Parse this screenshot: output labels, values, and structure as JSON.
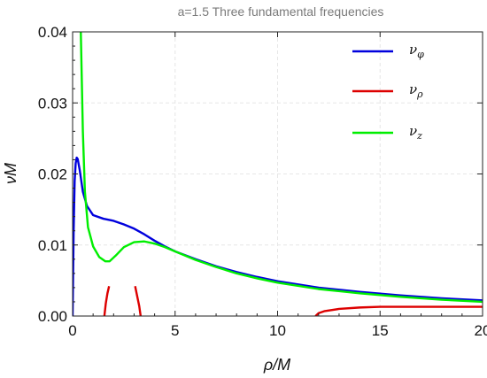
{
  "chart_data": {
    "type": "line",
    "title": "a=1.5  Three fundamental frequencies",
    "xlabel": "ρ/M",
    "ylabel": "νM",
    "xlim": [
      0,
      20
    ],
    "ylim": [
      0,
      0.04
    ],
    "xticks": [
      "0",
      "5",
      "10",
      "15",
      "20"
    ],
    "yticks": [
      "0.00",
      "0.01",
      "0.02",
      "0.03",
      "0.04"
    ],
    "grid": true,
    "legend": "top-right",
    "series": [
      {
        "name": "ν_φ",
        "legend_main": "ν",
        "legend_sub": "φ",
        "color": "#0000dd",
        "x": [
          0.0,
          0.05,
          0.1,
          0.15,
          0.2,
          0.25,
          0.35,
          0.5,
          0.7,
          1.0,
          1.5,
          2.0,
          2.5,
          3.0,
          3.5,
          4.0,
          4.5,
          5.0,
          6.0,
          7.0,
          8.0,
          9.0,
          10.0,
          12.0,
          14.0,
          16.0,
          18.0,
          20.0
        ],
        "y": [
          0.0,
          0.012,
          0.019,
          0.0215,
          0.0223,
          0.0221,
          0.0205,
          0.0175,
          0.0155,
          0.0142,
          0.0137,
          0.0134,
          0.0129,
          0.0123,
          0.0115,
          0.0106,
          0.0098,
          0.0091,
          0.008,
          0.007,
          0.0062,
          0.0055,
          0.0049,
          0.004,
          0.0034,
          0.0029,
          0.0025,
          0.0022
        ]
      },
      {
        "name": "ν_ρ",
        "legend_main": "ν",
        "legend_sub": "ρ",
        "color": "#dd0000",
        "segments": [
          {
            "x": [
              1.55,
              1.62,
              1.7,
              1.78
            ],
            "y": [
              0.0,
              0.0018,
              0.0032,
              0.0042
            ]
          },
          {
            "x": [
              3.05,
              3.15,
              3.25,
              3.32
            ],
            "y": [
              0.0042,
              0.0028,
              0.0014,
              0.0
            ]
          },
          {
            "x": [
              11.85,
              12.0,
              12.3,
              13.0,
              14.0,
              15.0,
              16.0,
              18.0,
              20.0
            ],
            "y": [
              0.0,
              0.0004,
              0.0007,
              0.001,
              0.0012,
              0.0013,
              0.0013,
              0.0013,
              0.0013
            ]
          }
        ]
      },
      {
        "name": "ν_z",
        "legend_main": "ν",
        "legend_sub": "z",
        "color": "#00ee00",
        "x": [
          0.4,
          0.45,
          0.5,
          0.6,
          0.75,
          1.0,
          1.3,
          1.6,
          1.8,
          2.1,
          2.5,
          3.0,
          3.5,
          4.0,
          4.5,
          5.0,
          6.0,
          7.0,
          8.0,
          9.0,
          10.0,
          12.0,
          14.0,
          16.0,
          18.0,
          20.0
        ],
        "y": [
          0.04,
          0.033,
          0.026,
          0.0175,
          0.0125,
          0.0098,
          0.0083,
          0.0077,
          0.0077,
          0.0085,
          0.0097,
          0.0104,
          0.0105,
          0.0102,
          0.0097,
          0.0091,
          0.0079,
          0.0069,
          0.006,
          0.0053,
          0.0047,
          0.0038,
          0.0032,
          0.0027,
          0.0023,
          0.002
        ]
      }
    ]
  }
}
